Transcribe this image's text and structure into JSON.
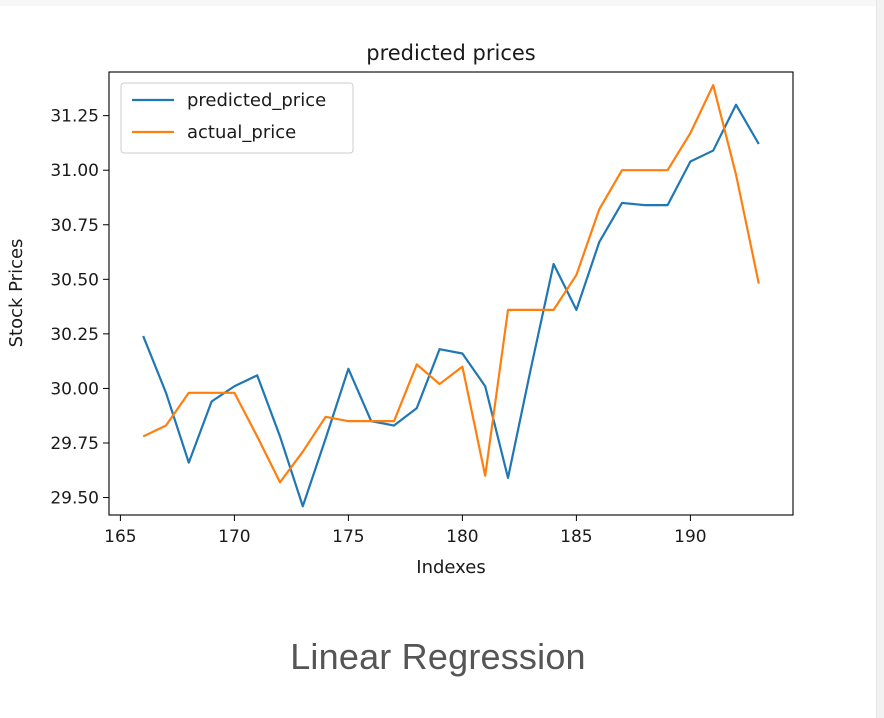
{
  "caption": "Linear Regression",
  "chart_data": {
    "type": "line",
    "title": "predicted prices",
    "xlabel": "Indexes",
    "ylabel": "Stock Prices",
    "xlim": [
      164.5,
      194.5
    ],
    "ylim": [
      29.42,
      31.45
    ],
    "xticks": [
      165,
      170,
      175,
      180,
      185,
      190
    ],
    "yticks": [
      29.5,
      29.75,
      30.0,
      30.25,
      30.5,
      30.75,
      31.0,
      31.25
    ],
    "ytick_labels": [
      "29.50",
      "29.75",
      "30.00",
      "30.25",
      "30.50",
      "30.75",
      "31.00",
      "31.25"
    ],
    "legend_position": "top-left",
    "x": [
      166,
      167,
      168,
      169,
      170,
      171,
      172,
      173,
      174,
      175,
      176,
      177,
      178,
      179,
      180,
      181,
      182,
      183,
      184,
      185,
      186,
      187,
      188,
      189,
      190,
      191,
      192,
      193
    ],
    "series": [
      {
        "name": "predicted_price",
        "color": "#1f77b4",
        "values": [
          30.24,
          29.98,
          29.66,
          29.94,
          30.01,
          30.06,
          29.78,
          29.46,
          29.77,
          30.09,
          29.85,
          29.83,
          29.91,
          30.18,
          30.16,
          30.01,
          29.59,
          30.09,
          30.57,
          30.36,
          30.67,
          30.85,
          30.84,
          30.84,
          31.04,
          31.09,
          31.3,
          31.12
        ]
      },
      {
        "name": "actual_price",
        "color": "#ff7f0e",
        "values": [
          29.78,
          29.83,
          29.98,
          29.98,
          29.98,
          29.78,
          29.57,
          29.71,
          29.87,
          29.85,
          29.85,
          29.85,
          30.11,
          30.02,
          30.1,
          29.6,
          30.36,
          30.36,
          30.36,
          30.52,
          30.82,
          31.0,
          31.0,
          31.0,
          31.17,
          31.39,
          30.98,
          30.48
        ]
      }
    ]
  }
}
